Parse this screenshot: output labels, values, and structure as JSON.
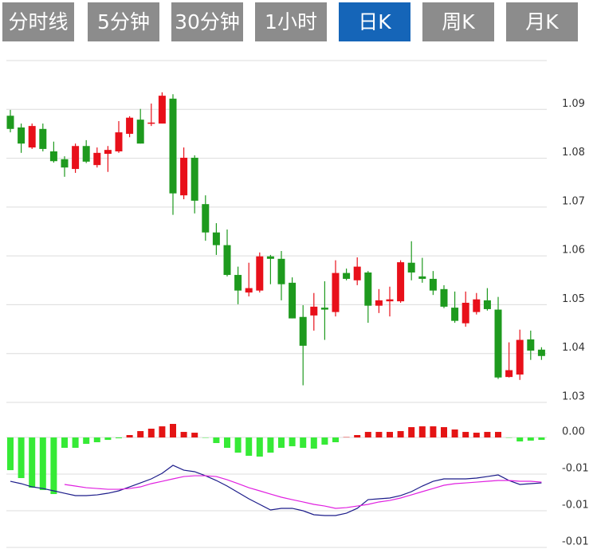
{
  "tabs": [
    "分时线",
    "5分钟",
    "30分钟",
    "1小时",
    "日K",
    "周K",
    "月K"
  ],
  "active_tab": 4,
  "chart_data": [
    {
      "type": "candlestick",
      "up_color": "#e8101a",
      "down_color": "#1e9a1e",
      "grid": true,
      "ylim": [
        1.03,
        1.1
      ],
      "yticks": [
        1.03,
        1.04,
        1.05,
        1.06,
        1.07,
        1.08,
        1.09
      ],
      "open": [
        1.0887,
        1.0863,
        1.0822,
        1.086,
        1.0814,
        1.0798,
        1.0778,
        1.0825,
        1.0786,
        1.0809,
        1.0814,
        1.085,
        1.0879,
        1.0871,
        1.0871,
        1.0922,
        1.0724,
        1.0801,
        1.0706,
        1.0648,
        1.0622,
        1.0561,
        1.0525,
        1.0529,
        1.0599,
        1.0594,
        1.0545,
        1.0475,
        1.0478,
        1.0494,
        1.0485,
        1.0565,
        1.055,
        1.0566,
        1.0498,
        1.0507,
        1.0507,
        1.0586,
        1.0558,
        1.0553,
        1.0532,
        1.0494,
        1.0462,
        1.0485,
        1.0509,
        1.049,
        1.0352,
        1.0357,
        1.0429,
        1.0408
      ],
      "close": [
        1.086,
        1.083,
        1.0866,
        1.0819,
        1.0794,
        1.0781,
        1.0825,
        1.0793,
        1.0811,
        1.0817,
        1.0853,
        1.0883,
        1.083,
        1.0873,
        1.0928,
        1.0728,
        1.0801,
        1.0713,
        1.0648,
        1.0622,
        1.0561,
        1.0529,
        1.0534,
        1.0599,
        1.0594,
        1.0542,
        1.0472,
        1.0416,
        1.0496,
        1.049,
        1.0565,
        1.0553,
        1.0578,
        1.0498,
        1.0509,
        1.0511,
        1.0587,
        1.0566,
        1.0553,
        1.0529,
        1.0496,
        1.0467,
        1.0504,
        1.0511,
        1.0491,
        1.0351,
        1.0366,
        1.0428,
        1.0406,
        1.0395
      ],
      "high": [
        1.0899,
        1.0871,
        1.0871,
        1.0871,
        1.0834,
        1.0804,
        1.083,
        1.0837,
        1.0822,
        1.0825,
        1.0876,
        1.0886,
        1.0901,
        1.0912,
        1.0935,
        1.0931,
        1.0822,
        1.0806,
        1.0724,
        1.0667,
        1.0654,
        1.0578,
        1.0586,
        1.0607,
        1.0602,
        1.061,
        1.0556,
        1.0499,
        1.0524,
        1.0548,
        1.0591,
        1.0574,
        1.0597,
        1.0569,
        1.0532,
        1.0537,
        1.0591,
        1.063,
        1.0596,
        1.0569,
        1.054,
        1.0527,
        1.0527,
        1.0524,
        1.0534,
        1.0516,
        1.0423,
        1.0449,
        1.0447,
        1.0413
      ],
      "low": [
        1.0853,
        1.0811,
        1.0819,
        1.0814,
        1.0791,
        1.0762,
        1.077,
        1.079,
        1.0781,
        1.0772,
        1.0811,
        1.0843,
        1.083,
        1.0866,
        1.0871,
        1.0684,
        1.0716,
        1.0687,
        1.0631,
        1.0602,
        1.0558,
        1.0501,
        1.0517,
        1.0525,
        1.0542,
        1.0509,
        1.0472,
        1.0335,
        1.0447,
        1.0428,
        1.0476,
        1.055,
        1.054,
        1.0463,
        1.0483,
        1.0476,
        1.0504,
        1.055,
        1.0545,
        1.052,
        1.0493,
        1.0463,
        1.0455,
        1.048,
        1.0488,
        1.0348,
        1.0351,
        1.0346,
        1.0387,
        1.0387
      ]
    },
    {
      "type": "macd",
      "up_color": "#e41414",
      "down_color": "#36ea36",
      "grid": true,
      "ylim": [
        -0.0155,
        0.0042
      ],
      "yticks": [
        {
          "value": 0,
          "label": "0.00"
        },
        {
          "value": -0.005,
          "label": "-0.01"
        },
        {
          "value": -0.01,
          "label": "-0.01"
        },
        {
          "value": -0.015,
          "label": "-0.01"
        }
      ],
      "values": [
        -0.00446,
        -0.00554,
        -0.00685,
        -0.00717,
        -0.00772,
        -0.00141,
        -0.00141,
        -0.00087,
        -0.00065,
        -0.00033,
        -0.00011,
        0.00033,
        0.00087,
        0.0012,
        0.00152,
        0.00185,
        0.00076,
        0.00065,
        -5e-05,
        -0.00076,
        -0.00141,
        -0.00207,
        -0.0025,
        -0.00261,
        -0.00207,
        -0.00141,
        -0.0012,
        -0.00141,
        -0.00152,
        -0.00098,
        -0.00065,
        5e-05,
        0.00033,
        0.00076,
        0.00076,
        0.00076,
        0.00087,
        0.00141,
        0.00152,
        0.00152,
        0.00141,
        0.00109,
        0.00076,
        0.00065,
        0.00076,
        0.00076,
        -5e-05,
        -0.00054,
        -0.00043,
        -0.00033
      ],
      "series": [
        {
          "color": "#1c1c8a",
          "values": [
            -0.00598,
            -0.0063,
            -0.00674,
            -0.00696,
            -0.00728,
            -0.00761,
            -0.00793,
            -0.00793,
            -0.00783,
            -0.00761,
            -0.00728,
            -0.00674,
            -0.0062,
            -0.00565,
            -0.00489,
            -0.0038,
            -0.00446,
            -0.00467,
            -0.00522,
            -0.00587,
            -0.00663,
            -0.0075,
            -0.00837,
            -0.00913,
            -0.00989,
            -0.00967,
            -0.00967,
            -0.01,
            -0.01054,
            -0.01065,
            -0.01065,
            -0.01033,
            -0.00967,
            -0.00848,
            -0.00837,
            -0.00826,
            -0.00793,
            -0.00739,
            -0.00663,
            -0.00598,
            -0.00565,
            -0.00565,
            -0.00565,
            -0.00554,
            -0.00533,
            -0.00511,
            -0.00587,
            -0.00641,
            -0.0063,
            -0.0062
          ]
        },
        {
          "color": "#e020e0",
          "values": [
            null,
            null,
            null,
            null,
            null,
            -0.00641,
            -0.00663,
            -0.00685,
            -0.00696,
            -0.00707,
            -0.00707,
            -0.00696,
            -0.00674,
            -0.0063,
            -0.00598,
            -0.00565,
            -0.00533,
            -0.00522,
            -0.00522,
            -0.00533,
            -0.00576,
            -0.0063,
            -0.00685,
            -0.00728,
            -0.00772,
            -0.00815,
            -0.00848,
            -0.0088,
            -0.00913,
            -0.00935,
            -0.00967,
            -0.00957,
            -0.00935,
            -0.00913,
            -0.0088,
            -0.00859,
            -0.00826,
            -0.00783,
            -0.00739,
            -0.00696,
            -0.00652,
            -0.0063,
            -0.0062,
            -0.00609,
            -0.00598,
            -0.00587,
            -0.00587,
            -0.00598,
            -0.00598,
            -0.00609
          ]
        }
      ]
    }
  ]
}
